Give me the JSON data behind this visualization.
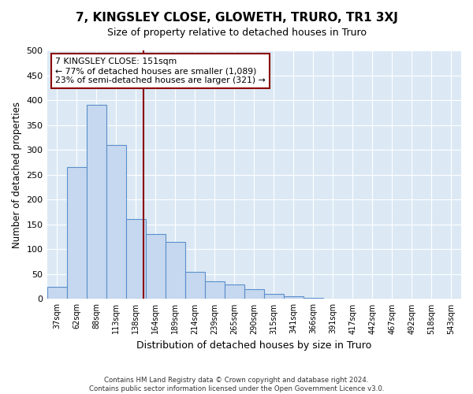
{
  "title": "7, KINGSLEY CLOSE, GLOWETH, TRURO, TR1 3XJ",
  "subtitle": "Size of property relative to detached houses in Truro",
  "xlabel": "Distribution of detached houses by size in Truro",
  "ylabel": "Number of detached properties",
  "bar_labels": [
    "37sqm",
    "62sqm",
    "88sqm",
    "113sqm",
    "138sqm",
    "164sqm",
    "189sqm",
    "214sqm",
    "239sqm",
    "265sqm",
    "290sqm",
    "315sqm",
    "341sqm",
    "366sqm",
    "391sqm",
    "417sqm",
    "442sqm",
    "467sqm",
    "492sqm",
    "518sqm",
    "543sqm"
  ],
  "bar_values": [
    25,
    265,
    390,
    310,
    160,
    130,
    115,
    55,
    35,
    30,
    20,
    10,
    5,
    2,
    1,
    1,
    1,
    1,
    1,
    1,
    1
  ],
  "bar_color": "#c5d8f0",
  "bar_edge_color": "#5b8fc9",
  "ylim": [
    0,
    500
  ],
  "yticks": [
    0,
    50,
    100,
    150,
    200,
    250,
    300,
    350,
    400,
    450,
    500
  ],
  "vline_color": "#8b0000",
  "annotation_text": "7 KINGSLEY CLOSE: 151sqm\n← 77% of detached houses are smaller (1,089)\n23% of semi-detached houses are larger (321) →",
  "annotation_box_color": "#ffffff",
  "annotation_box_edge": "#8b0000",
  "footer": "Contains HM Land Registry data © Crown copyright and database right 2024.\nContains public sector information licensed under the Open Government Licence v3.0.",
  "fig_bg_color": "#ffffff",
  "plot_bg_color": "#dce9f5",
  "grid_color": "#ffffff"
}
